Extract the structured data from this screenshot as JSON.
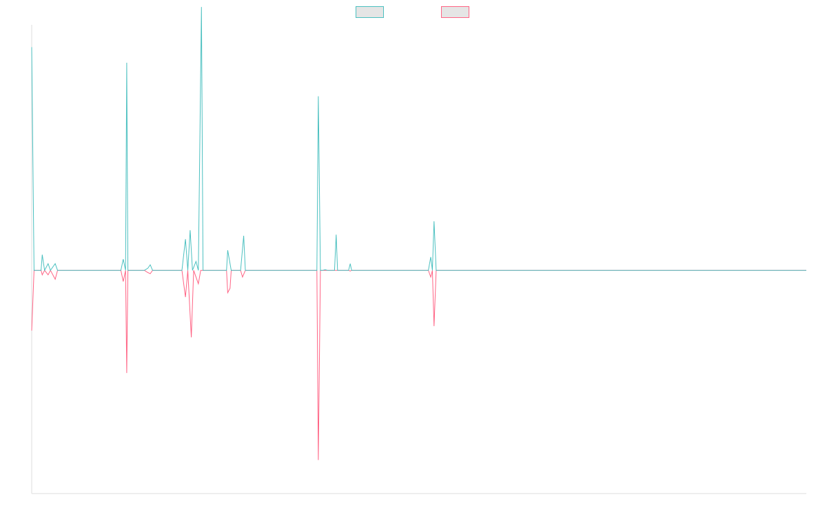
{
  "chart_data": {
    "type": "line",
    "title": "",
    "xlabel": "",
    "ylabel": "",
    "xlim": [
      0,
      330
    ],
    "ylim": [
      -1,
      1.1
    ],
    "grid": false,
    "legend": {
      "position": "top-center",
      "entries": [
        {
          "name": "",
          "color": "#4bc0c0",
          "fill": "#e5e5e5"
        },
        {
          "name": "",
          "color": "#ff6384",
          "fill": "#e5e5e5"
        }
      ]
    },
    "series": [
      {
        "name": "",
        "color": "#4bc0c0",
        "points": [
          [
            0,
            1.0
          ],
          [
            1,
            0
          ],
          [
            4,
            0
          ],
          [
            4.5,
            0.07
          ],
          [
            5.5,
            0
          ],
          [
            7,
            0.03
          ],
          [
            8,
            0
          ],
          [
            10,
            0.03
          ],
          [
            11,
            0
          ],
          [
            38,
            0
          ],
          [
            39,
            0.05
          ],
          [
            40,
            0
          ],
          [
            40.5,
            0.93
          ],
          [
            41,
            0
          ],
          [
            48,
            0
          ],
          [
            49.5,
            0.01
          ],
          [
            50.5,
            0.025
          ],
          [
            51.5,
            0
          ],
          [
            64,
            0
          ],
          [
            65.5,
            0.14
          ],
          [
            66.5,
            0
          ],
          [
            67.5,
            0.18
          ],
          [
            68.5,
            0
          ],
          [
            70,
            0.04
          ],
          [
            71,
            0
          ],
          [
            72.3,
            1.18
          ],
          [
            73,
            0
          ],
          [
            83,
            0
          ],
          [
            83.5,
            0.09
          ],
          [
            85,
            0
          ],
          [
            89,
            0
          ],
          [
            90.3,
            0.155
          ],
          [
            91,
            0
          ],
          [
            121.5,
            0
          ],
          [
            122.1,
            0.78
          ],
          [
            123,
            0
          ],
          [
            124,
            0
          ],
          [
            125,
            0.003
          ],
          [
            126,
            0
          ],
          [
            129,
            0
          ],
          [
            129.7,
            0.16
          ],
          [
            130.3,
            0
          ],
          [
            135,
            0
          ],
          [
            135.7,
            0.03
          ],
          [
            136.3,
            0
          ],
          [
            169,
            0
          ],
          [
            170,
            0.06
          ],
          [
            170.7,
            0
          ],
          [
            171.4,
            0.22
          ],
          [
            172.3,
            0
          ],
          [
            330,
            0
          ]
        ]
      },
      {
        "name": "",
        "color": "#ff6384",
        "points": [
          [
            0,
            -0.27
          ],
          [
            1,
            0
          ],
          [
            4,
            0
          ],
          [
            4.5,
            -0.02
          ],
          [
            5.5,
            0
          ],
          [
            7,
            -0.02
          ],
          [
            8,
            0
          ],
          [
            10,
            -0.04
          ],
          [
            11,
            0
          ],
          [
            38,
            0
          ],
          [
            39,
            -0.05
          ],
          [
            40,
            0
          ],
          [
            40.5,
            -0.46
          ],
          [
            41,
            0
          ],
          [
            48,
            0
          ],
          [
            49.5,
            -0.01
          ],
          [
            50.5,
            -0.015
          ],
          [
            51.5,
            0
          ],
          [
            64,
            0
          ],
          [
            65.5,
            -0.12
          ],
          [
            66.5,
            0
          ],
          [
            68,
            -0.3
          ],
          [
            69,
            0
          ],
          [
            71,
            -0.06
          ],
          [
            72,
            0
          ],
          [
            83,
            0
          ],
          [
            83.5,
            -0.1
          ],
          [
            84.5,
            -0.08
          ],
          [
            85,
            0
          ],
          [
            89,
            0
          ],
          [
            89.8,
            -0.03
          ],
          [
            91,
            0
          ],
          [
            121.5,
            0
          ],
          [
            122.1,
            -0.85
          ],
          [
            123,
            0
          ],
          [
            135,
            0
          ],
          [
            135.7,
            -0.003
          ],
          [
            136.3,
            0
          ],
          [
            169,
            0
          ],
          [
            170,
            -0.03
          ],
          [
            170.7,
            0
          ],
          [
            171.4,
            -0.25
          ],
          [
            172.3,
            0
          ],
          [
            330,
            0
          ]
        ]
      }
    ]
  }
}
